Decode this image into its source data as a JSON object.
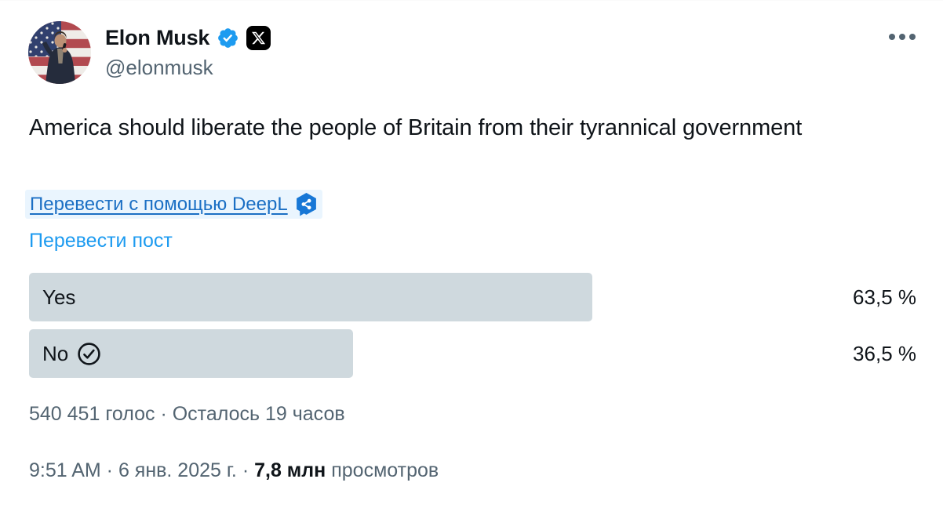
{
  "header": {
    "display_name": "Elon Musk",
    "handle": "@elonmusk",
    "avatar_description": "elon-musk-photo-us-flag",
    "icons": {
      "verified": "blue-verified-check",
      "affiliate": "x-logo-black-badge",
      "more": "ellipsis-dots"
    }
  },
  "tweet": {
    "text": "America should liberate the people of Britain from their tyrannical government"
  },
  "translate": {
    "deepl_link_label": "Перевести с помощью DeepL",
    "deepl_icon": "deepl-share-cube",
    "translate_post_label": "Перевести пост"
  },
  "poll": {
    "type": "poll-results",
    "options": [
      {
        "label": "Yes",
        "percent": 63.5,
        "percent_label": "63,5 %",
        "voted": false
      },
      {
        "label": "No",
        "percent": 36.5,
        "percent_label": "36,5 %",
        "voted": true
      }
    ],
    "voted_icon": "circled-check",
    "meta": "540 451 голос · Осталось 19 часов"
  },
  "footer": {
    "timestamp": "9:51 AM · 6 янв. 2025 г.",
    "separator": " · ",
    "views_count": "7,8 млн",
    "views_label": " просмотров"
  },
  "colors": {
    "text_primary": "#0f1419",
    "text_secondary": "#536471",
    "accent_blue": "#1d9bf0",
    "deepl_link_blue": "#1b6fc4",
    "deepl_brand_blue": "#1777d6",
    "poll_bar": "#cfd9de",
    "badge_black": "#000000"
  }
}
